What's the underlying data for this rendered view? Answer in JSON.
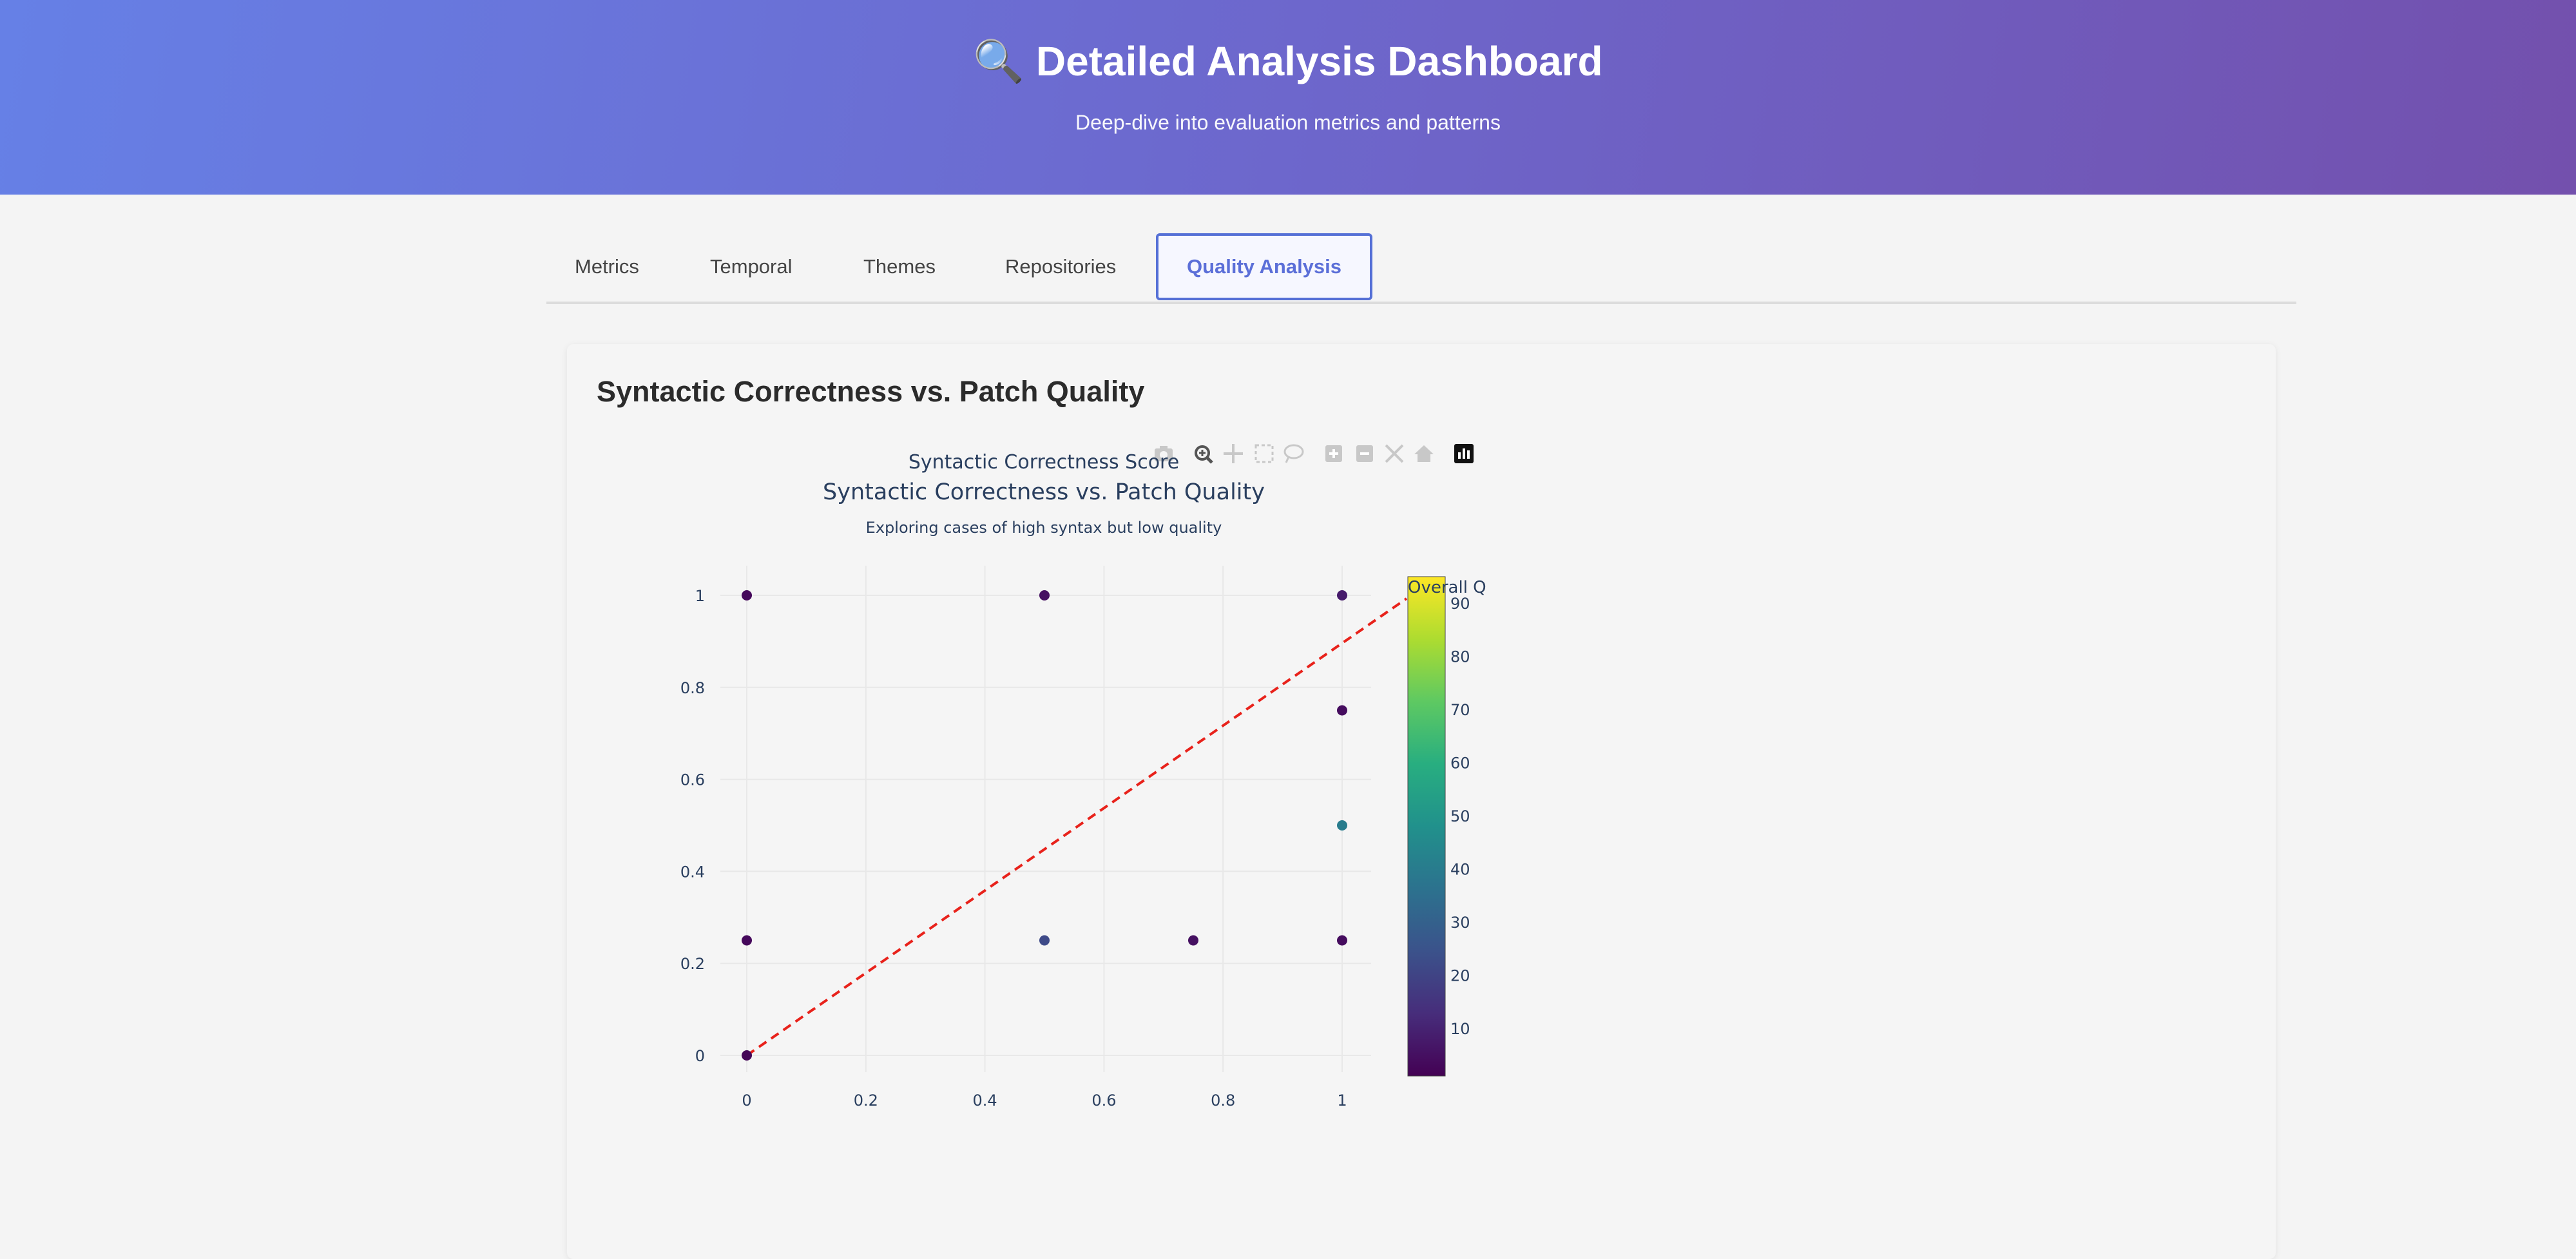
{
  "header": {
    "title": "🔍 Detailed Analysis Dashboard",
    "subtitle": "Deep-dive into evaluation metrics and patterns"
  },
  "tabs": [
    {
      "label": "Metrics",
      "active": false
    },
    {
      "label": "Temporal",
      "active": false
    },
    {
      "label": "Themes",
      "active": false
    },
    {
      "label": "Repositories",
      "active": false
    },
    {
      "label": "Quality Analysis",
      "active": true
    }
  ],
  "card": {
    "title": "Syntactic Correctness vs. Patch Quality"
  },
  "toolbar": {
    "icons": [
      "camera-icon",
      "zoom-icon",
      "pan-icon",
      "box-select-icon",
      "lasso-select-icon",
      "zoom-in-icon",
      "zoom-out-icon",
      "autoscale-icon",
      "reset-axes-icon",
      "plotly-logo-icon"
    ]
  },
  "chart_data": {
    "type": "scatter",
    "title": "Syntactic Correctness vs. Patch Quality",
    "subtitle": "Exploring cases of high syntax but low quality",
    "xlabel": "Syntactic Correctness Score",
    "ylabel": "",
    "xlim": [
      0,
      1
    ],
    "ylim": [
      0,
      1
    ],
    "x_ticks": [
      "0",
      "0.2",
      "0.4",
      "0.6",
      "0.8",
      "1"
    ],
    "y_ticks": [
      "0",
      "0.2",
      "0.4",
      "0.6",
      "0.8",
      "1"
    ],
    "grid": true,
    "points": [
      {
        "x": 0,
        "y": 1,
        "color_value": 3
      },
      {
        "x": 0.5,
        "y": 1,
        "color_value": 5
      },
      {
        "x": 1,
        "y": 1,
        "color_value": 8
      },
      {
        "x": 1,
        "y": 0.75,
        "color_value": 4
      },
      {
        "x": 1,
        "y": 0.5,
        "color_value": 40
      },
      {
        "x": 0,
        "y": 0.25,
        "color_value": 3
      },
      {
        "x": 0.5,
        "y": 0.25,
        "color_value": 22
      },
      {
        "x": 0.75,
        "y": 0.25,
        "color_value": 5
      },
      {
        "x": 1,
        "y": 0.25,
        "color_value": 4
      },
      {
        "x": 0,
        "y": 0,
        "color_value": 2
      }
    ],
    "reference_line": {
      "from": [
        0,
        0
      ],
      "to": [
        1,
        1
      ],
      "color": "#e8221b",
      "style": "dashed"
    },
    "colorbar": {
      "title": "Overall Q",
      "ticks": [
        "10",
        "20",
        "30",
        "40",
        "50",
        "60",
        "70",
        "80",
        "90"
      ],
      "range": [
        1,
        95
      ],
      "colorscale": "viridis"
    }
  }
}
